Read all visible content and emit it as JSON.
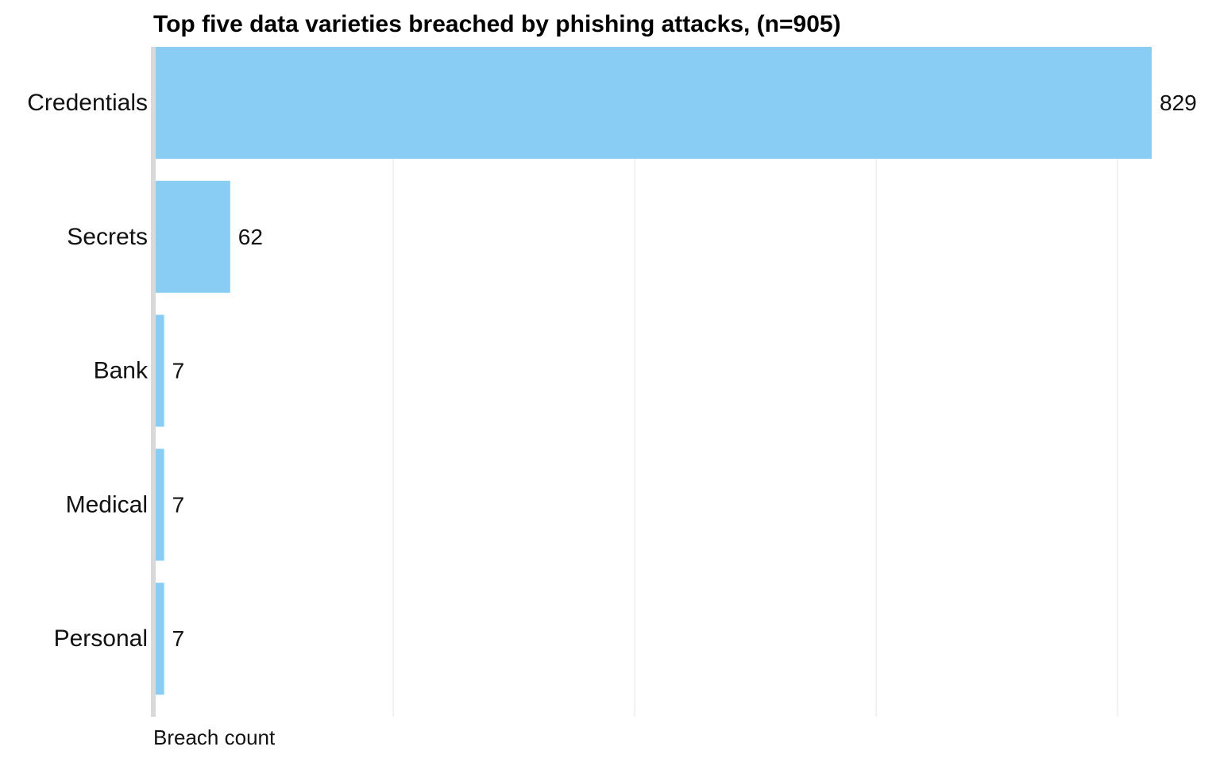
{
  "chart_data": {
    "type": "bar",
    "orientation": "horizontal",
    "title": "Top five data varieties breached by phishing attacks, (n=905)",
    "xlabel": "Breach count",
    "ylabel": "",
    "categories": [
      "Credentials",
      "Secrets",
      "Bank",
      "Medical",
      "Personal"
    ],
    "values": [
      829,
      62,
      7,
      7,
      7
    ],
    "xlim": [
      0,
      829
    ],
    "grid": true,
    "legend": "none",
    "bar_color": "#89CDF5"
  }
}
